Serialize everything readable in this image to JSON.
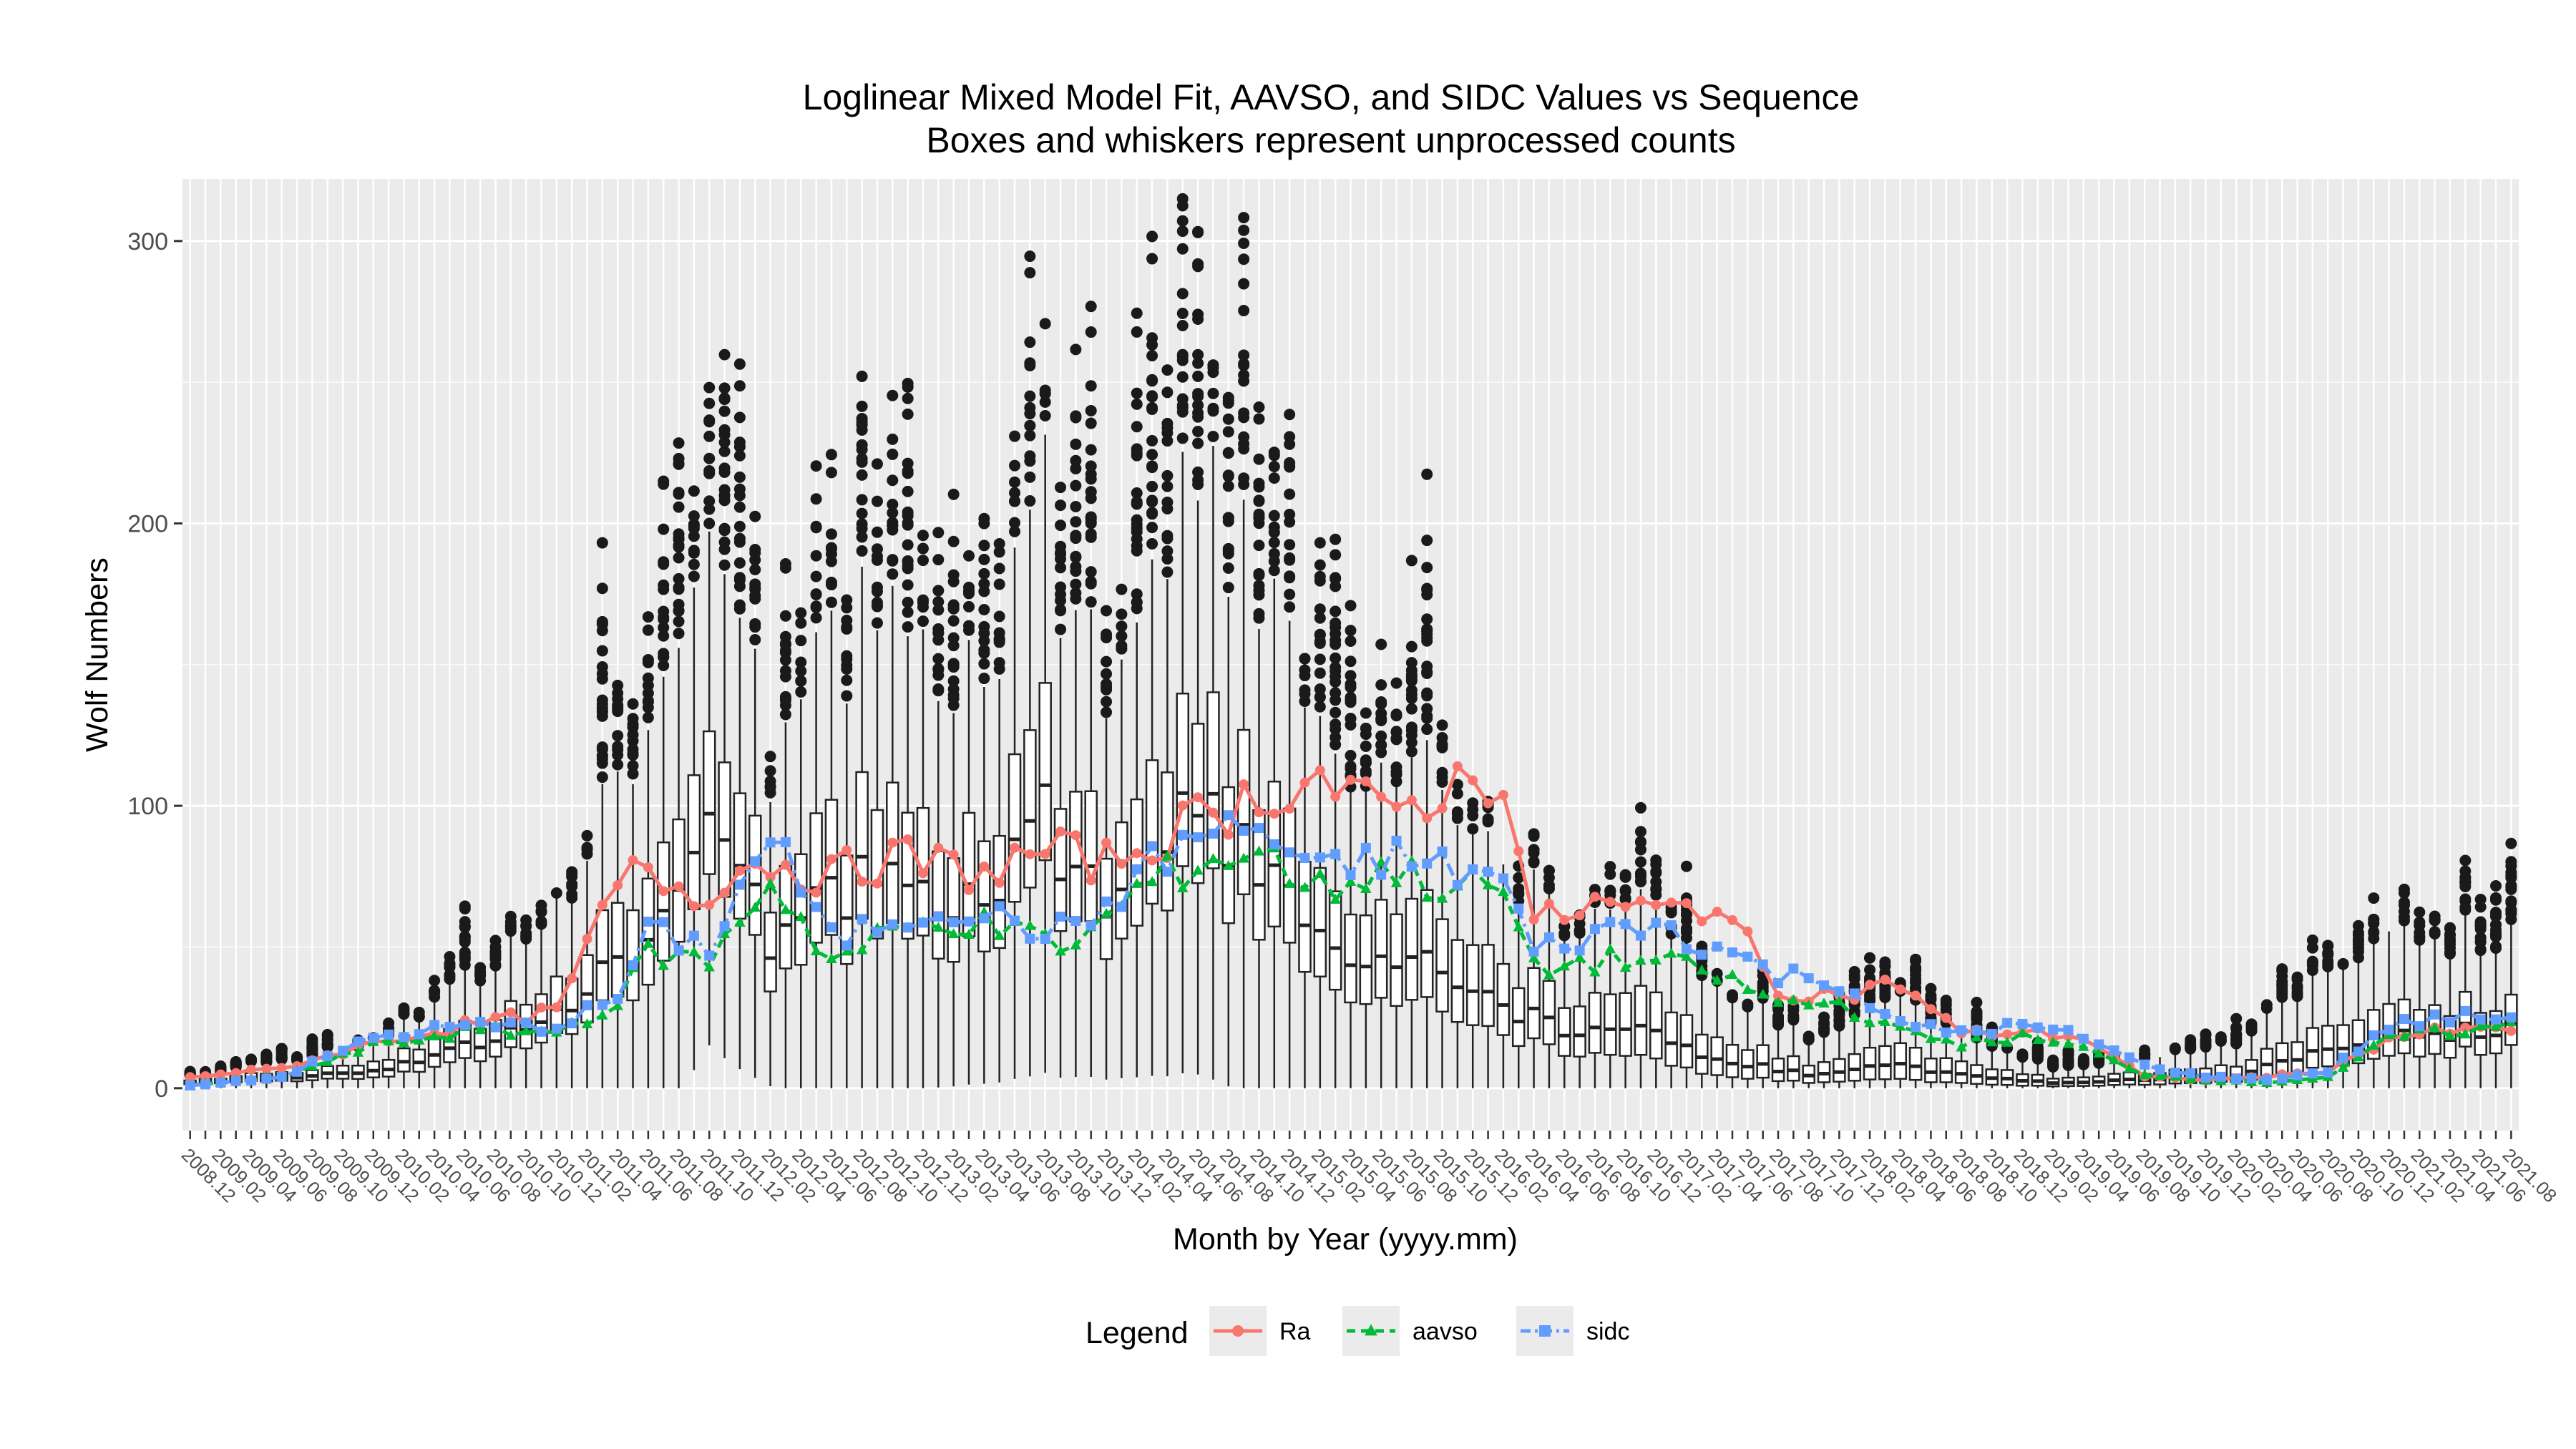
{
  "chart_data": {
    "type": "boxplot-with-lines",
    "title": "Loglinear Mixed Model Fit, AAVSO, and SIDC Values vs Sequence",
    "subtitle": "Boxes and whiskers represent unprocessed counts",
    "xlabel": "Month by Year (yyyy.mm)",
    "ylabel": "Wolf Numbers",
    "ylim": [
      -15,
      322
    ],
    "yticks": [
      0,
      100,
      200,
      300
    ],
    "grid": true,
    "legend_position": "bottom",
    "legend": {
      "title": "Legend",
      "entries": [
        {
          "label": "Ra",
          "color": "#F8766D",
          "shape": "circle",
          "line": "solid"
        },
        {
          "label": "aavso",
          "color": "#00BA38",
          "shape": "triangle",
          "line": "dashed"
        },
        {
          "label": "sidc",
          "color": "#619CFF",
          "shape": "square",
          "line": "dotdash"
        }
      ]
    },
    "x_tick_labels": [
      "2008.12",
      "2009.02",
      "2009.04",
      "2009.06",
      "2009.08",
      "2009.10",
      "2009.12",
      "2010.02",
      "2010.04",
      "2010.06",
      "2010.08",
      "2010.10",
      "2010.12",
      "2011.02",
      "2011.04",
      "2011.06",
      "2011.08",
      "2011.10",
      "2011.12",
      "2012.02",
      "2012.04",
      "2012.06",
      "2012.08",
      "2012.10",
      "2012.12",
      "2013.02",
      "2013.04",
      "2013.06",
      "2013.08",
      "2013.10",
      "2013.12",
      "2014.02",
      "2014.04",
      "2014.06",
      "2014.08",
      "2014.10",
      "2014.12",
      "2015.02",
      "2015.04",
      "2015.06",
      "2015.08",
      "2015.10",
      "2015.12",
      "2016.02",
      "2016.04",
      "2016.06",
      "2016.08",
      "2016.10",
      "2016.12",
      "2017.02",
      "2017.04",
      "2017.06",
      "2017.08",
      "2017.10",
      "2017.12",
      "2018.02",
      "2018.04",
      "2018.06",
      "2018.08",
      "2018.10",
      "2018.12",
      "2019.02",
      "2019.04",
      "2019.06",
      "2019.08",
      "2019.10",
      "2019.12",
      "2020.02",
      "2020.04",
      "2020.06",
      "2020.08",
      "2020.10",
      "2020.12",
      "2021.02",
      "2021.04",
      "2021.06",
      "2021.08"
    ],
    "months_start": "2008.12",
    "n_months": 153,
    "x_tick_every": 2,
    "box_anchor_medians": [
      [
        0,
        2
      ],
      [
        12,
        6
      ],
      [
        18,
        15
      ],
      [
        24,
        25
      ],
      [
        30,
        55
      ],
      [
        34,
        110
      ],
      [
        38,
        50
      ],
      [
        44,
        75
      ],
      [
        50,
        60
      ],
      [
        56,
        95
      ],
      [
        60,
        60
      ],
      [
        66,
        110
      ],
      [
        70,
        75
      ],
      [
        76,
        40
      ],
      [
        80,
        45
      ],
      [
        86,
        30
      ],
      [
        90,
        20
      ],
      [
        95,
        22
      ],
      [
        100,
        10
      ],
      [
        106,
        5
      ],
      [
        112,
        8
      ],
      [
        116,
        5
      ],
      [
        122,
        2
      ],
      [
        128,
        3
      ],
      [
        134,
        5
      ],
      [
        140,
        15
      ],
      [
        146,
        20
      ],
      [
        152,
        20
      ]
    ],
    "box_anchor_spreads": [
      [
        0,
        0.5
      ],
      [
        12,
        0.7
      ],
      [
        24,
        0.55
      ],
      [
        30,
        0.55
      ],
      [
        34,
        0.4
      ],
      [
        40,
        0.5
      ],
      [
        56,
        0.45
      ],
      [
        66,
        0.45
      ],
      [
        76,
        0.55
      ],
      [
        90,
        0.7
      ],
      [
        100,
        1.0
      ],
      [
        120,
        1.2
      ],
      [
        140,
        0.8
      ],
      [
        152,
        0.6
      ]
    ],
    "series": [
      {
        "name": "Ra",
        "anchors": [
          [
            0,
            4
          ],
          [
            6,
            7
          ],
          [
            12,
            16
          ],
          [
            18,
            22
          ],
          [
            24,
            27
          ],
          [
            28,
            72
          ],
          [
            30,
            78
          ],
          [
            33,
            68
          ],
          [
            36,
            78
          ],
          [
            38,
            80
          ],
          [
            42,
            75
          ],
          [
            46,
            82
          ],
          [
            52,
            76
          ],
          [
            56,
            84
          ],
          [
            60,
            80
          ],
          [
            66,
            95
          ],
          [
            70,
            104
          ],
          [
            74,
            110
          ],
          [
            78,
            96
          ],
          [
            82,
            106
          ],
          [
            86,
            112
          ],
          [
            88,
            58
          ],
          [
            92,
            65
          ],
          [
            96,
            62
          ],
          [
            100,
            66
          ],
          [
            104,
            35
          ],
          [
            108,
            33
          ],
          [
            112,
            37
          ],
          [
            116,
            19
          ],
          [
            120,
            20
          ],
          [
            124,
            18
          ],
          [
            128,
            4
          ],
          [
            132,
            3
          ],
          [
            136,
            4
          ],
          [
            140,
            6
          ],
          [
            142,
            12
          ],
          [
            144,
            18
          ],
          [
            148,
            20
          ],
          [
            152,
            21
          ]
        ]
      },
      {
        "name": "aavso",
        "anchors": [
          [
            0,
            1
          ],
          [
            6,
            4
          ],
          [
            12,
            15
          ],
          [
            18,
            20
          ],
          [
            24,
            20
          ],
          [
            28,
            30
          ],
          [
            30,
            48
          ],
          [
            34,
            45
          ],
          [
            38,
            74
          ],
          [
            42,
            45
          ],
          [
            46,
            55
          ],
          [
            50,
            60
          ],
          [
            54,
            55
          ],
          [
            58,
            50
          ],
          [
            62,
            70
          ],
          [
            66,
            80
          ],
          [
            70,
            84
          ],
          [
            74,
            70
          ],
          [
            78,
            78
          ],
          [
            82,
            72
          ],
          [
            86,
            70
          ],
          [
            88,
            42
          ],
          [
            92,
            45
          ],
          [
            96,
            45
          ],
          [
            100,
            40
          ],
          [
            104,
            30
          ],
          [
            108,
            30
          ],
          [
            112,
            20
          ],
          [
            116,
            16
          ],
          [
            120,
            18
          ],
          [
            124,
            14
          ],
          [
            128,
            5
          ],
          [
            132,
            3
          ],
          [
            136,
            2
          ],
          [
            140,
            4
          ],
          [
            142,
            10
          ],
          [
            144,
            18
          ],
          [
            148,
            20
          ],
          [
            152,
            22
          ]
        ]
      },
      {
        "name": "sidc",
        "anchors": [
          [
            0,
            1
          ],
          [
            6,
            4
          ],
          [
            12,
            18
          ],
          [
            18,
            22
          ],
          [
            24,
            22
          ],
          [
            28,
            32
          ],
          [
            30,
            55
          ],
          [
            34,
            50
          ],
          [
            38,
            90
          ],
          [
            42,
            52
          ],
          [
            46,
            60
          ],
          [
            50,
            65
          ],
          [
            54,
            58
          ],
          [
            58,
            55
          ],
          [
            62,
            75
          ],
          [
            66,
            90
          ],
          [
            70,
            92
          ],
          [
            74,
            75
          ],
          [
            78,
            82
          ],
          [
            82,
            78
          ],
          [
            86,
            74
          ],
          [
            88,
            48
          ],
          [
            92,
            55
          ],
          [
            96,
            58
          ],
          [
            100,
            50
          ],
          [
            104,
            40
          ],
          [
            108,
            38
          ],
          [
            112,
            22
          ],
          [
            116,
            20
          ],
          [
            120,
            22
          ],
          [
            124,
            18
          ],
          [
            128,
            8
          ],
          [
            132,
            4
          ],
          [
            136,
            3
          ],
          [
            140,
            6
          ],
          [
            142,
            14
          ],
          [
            144,
            22
          ],
          [
            148,
            25
          ],
          [
            152,
            25
          ]
        ]
      }
    ]
  }
}
